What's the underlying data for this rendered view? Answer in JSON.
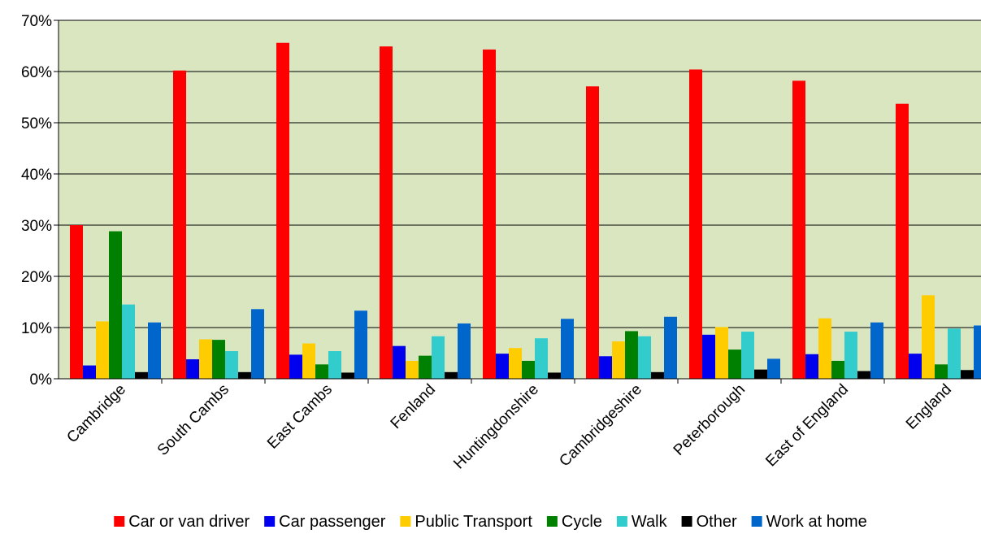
{
  "chart_data": {
    "type": "bar",
    "title": "",
    "xlabel": "",
    "ylabel": "",
    "ylim": [
      0,
      70
    ],
    "y_tick_values": [
      0,
      10,
      20,
      30,
      40,
      50,
      60,
      70
    ],
    "y_tick_labels": [
      "0%",
      "10%",
      "20%",
      "30%",
      "40%",
      "50%",
      "60%",
      "70%"
    ],
    "grid": true,
    "legend_position": "bottom",
    "plot_background": "#d9e6c0",
    "categories": [
      "Cambridge",
      "South Cambs",
      "East Cambs",
      "Fenland",
      "Huntingdonshire",
      "Cambridgeshire",
      "Peterborough",
      "East of England",
      "England"
    ],
    "series": [
      {
        "name": "Car or van driver",
        "color": "#ff0000",
        "values": [
          30.0,
          60.2,
          65.6,
          64.9,
          64.3,
          57.1,
          60.4,
          58.2,
          53.7
        ]
      },
      {
        "name": "Car passenger",
        "color": "#0000ee",
        "values": [
          2.6,
          3.8,
          4.7,
          6.4,
          4.9,
          4.4,
          8.6,
          4.8,
          4.9
        ]
      },
      {
        "name": "Public Transport",
        "color": "#ffcc00",
        "values": [
          11.2,
          7.7,
          6.9,
          3.5,
          6.0,
          7.3,
          10.1,
          11.8,
          16.3
        ]
      },
      {
        "name": "Cycle",
        "color": "#008000",
        "values": [
          28.8,
          7.6,
          2.8,
          4.5,
          3.5,
          9.3,
          5.7,
          3.5,
          2.8
        ]
      },
      {
        "name": "Walk",
        "color": "#33cccc",
        "values": [
          14.5,
          5.4,
          5.4,
          8.3,
          7.9,
          8.3,
          9.2,
          9.2,
          9.8
        ]
      },
      {
        "name": "Other",
        "color": "#000000",
        "values": [
          1.3,
          1.3,
          1.2,
          1.3,
          1.2,
          1.3,
          1.8,
          1.5,
          1.7
        ]
      },
      {
        "name": "Work at home",
        "color": "#0066cc",
        "values": [
          11.0,
          13.6,
          13.3,
          10.8,
          11.7,
          12.1,
          3.9,
          11.0,
          10.4
        ]
      }
    ]
  }
}
